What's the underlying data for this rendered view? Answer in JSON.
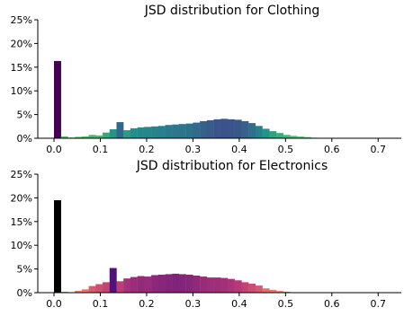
{
  "chart_data": [
    {
      "type": "bar",
      "title": "JSD distribution for Clothing",
      "xlabel": "",
      "ylabel": "",
      "xlim": [
        -0.035,
        0.75
      ],
      "ylim": [
        0,
        25
      ],
      "x_ticks": [
        0.0,
        0.1,
        0.2,
        0.3,
        0.4,
        0.5,
        0.6,
        0.7
      ],
      "x_tick_labels": [
        "0.0",
        "0.1",
        "0.2",
        "0.3",
        "0.4",
        "0.5",
        "0.6",
        "0.7"
      ],
      "y_ticks": [
        0,
        5,
        10,
        15,
        20,
        25
      ],
      "y_tick_labels": [
        "0%",
        "5%",
        "10%",
        "15%",
        "20%",
        "25%"
      ],
      "bin_width": 0.015,
      "bin_start": 0.0,
      "values": [
        16.3,
        0.4,
        0.15,
        0.3,
        0.4,
        0.7,
        0.6,
        1.2,
        1.9,
        3.4,
        1.7,
        2.1,
        2.3,
        2.4,
        2.5,
        2.6,
        2.8,
        2.9,
        3.0,
        3.1,
        3.3,
        3.6,
        3.8,
        4.0,
        4.1,
        4.0,
        3.9,
        3.6,
        3.2,
        2.6,
        2.0,
        1.5,
        1.1,
        0.7,
        0.5,
        0.35,
        0.25,
        0.12,
        0.05,
        0.03,
        0.02,
        0.01,
        0.01,
        0.01,
        0.01,
        0.01,
        0.01
      ],
      "colormap": "viridis",
      "highlight": {
        "index": 0,
        "color": "#440154"
      },
      "grid": false,
      "legend": "none"
    },
    {
      "type": "bar",
      "title": "JSD distribution for Electronics",
      "xlabel": "",
      "ylabel": "",
      "xlim": [
        -0.035,
        0.75
      ],
      "ylim": [
        0,
        25
      ],
      "x_ticks": [
        0.0,
        0.1,
        0.2,
        0.3,
        0.4,
        0.5,
        0.6,
        0.7
      ],
      "x_tick_labels": [
        "0.0",
        "0.1",
        "0.2",
        "0.3",
        "0.4",
        "0.5",
        "0.6",
        "0.7"
      ],
      "y_ticks": [
        0,
        5,
        10,
        15,
        20,
        25
      ],
      "y_tick_labels": [
        "0%",
        "5%",
        "10%",
        "15%",
        "20%",
        "25%"
      ],
      "bin_width": 0.015,
      "bin_start": 0.0,
      "values": [
        19.5,
        0.2,
        0.1,
        0.4,
        0.7,
        1.4,
        1.8,
        2.2,
        5.2,
        2.4,
        3.0,
        3.3,
        3.5,
        3.4,
        3.7,
        3.8,
        3.9,
        4.0,
        3.9,
        3.8,
        3.6,
        3.4,
        3.2,
        3.2,
        3.1,
        2.9,
        2.6,
        2.2,
        1.9,
        1.5,
        0.9,
        0.6,
        0.35,
        0.2,
        0.1,
        0.05,
        0.03,
        0.02,
        0.01,
        0.01,
        0.01,
        0.01,
        0.01,
        0.01,
        0.01,
        0.01,
        0.01
      ],
      "colormap": "magma",
      "highlight": {
        "index": 0,
        "color": "#000000"
      },
      "grid": false,
      "legend": "none"
    }
  ]
}
